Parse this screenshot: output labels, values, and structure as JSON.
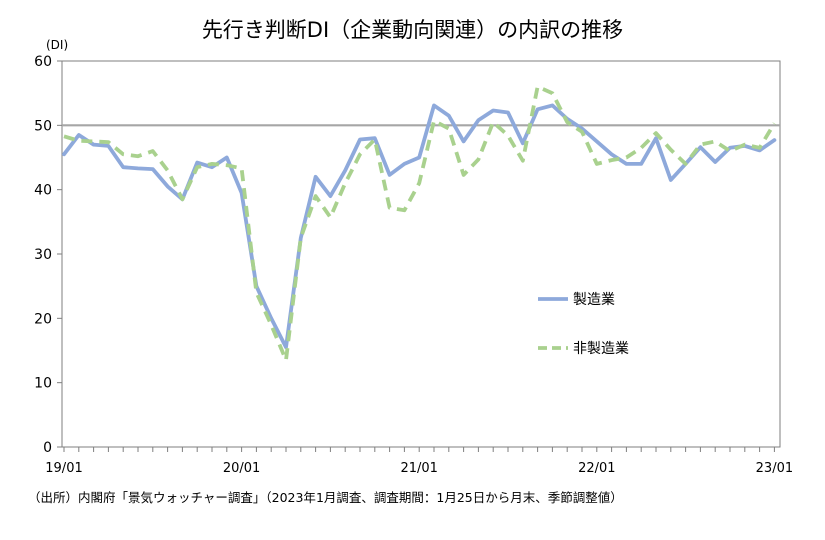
{
  "chart_data": {
    "type": "line",
    "title": "先行き判断DI（企業動向関連）の内訳の推移",
    "ylabel": "(DI)",
    "ylim": [
      0,
      60
    ],
    "yticks": [
      0,
      10,
      20,
      30,
      40,
      50,
      60
    ],
    "xtick_labels": [
      "19/01",
      "20/01",
      "21/01",
      "22/01",
      "23/01"
    ],
    "reference_line": 50,
    "grid": false,
    "legend_position": "center-right",
    "x": [
      "19/01",
      "19/02",
      "19/03",
      "19/04",
      "19/05",
      "19/06",
      "19/07",
      "19/08",
      "19/09",
      "19/10",
      "19/11",
      "19/12",
      "20/01",
      "20/02",
      "20/03",
      "20/04",
      "20/05",
      "20/06",
      "20/07",
      "20/08",
      "20/09",
      "20/10",
      "20/11",
      "20/12",
      "21/01",
      "21/02",
      "21/03",
      "21/04",
      "21/05",
      "21/06",
      "21/07",
      "21/08",
      "21/09",
      "21/10",
      "21/11",
      "21/12",
      "22/01",
      "22/02",
      "22/03",
      "22/04",
      "22/05",
      "22/06",
      "22/07",
      "22/08",
      "22/09",
      "22/10",
      "22/11",
      "22/12",
      "23/01"
    ],
    "series": [
      {
        "name": "製造業",
        "color": "#8EA9DB",
        "style": "solid",
        "values": [
          45.5,
          48.5,
          47,
          46.8,
          43.5,
          43.3,
          43.2,
          40.5,
          38.5,
          44.2,
          43.5,
          45,
          39.5,
          25,
          20,
          15.5,
          32.5,
          42,
          39,
          43,
          47.8,
          48,
          42.3,
          44,
          45,
          53.1,
          51.5,
          47.5,
          50.8,
          52.3,
          52,
          47.2,
          52.5,
          53.1,
          51,
          49.5,
          47.5,
          45.5,
          44,
          44,
          48,
          41.5,
          44,
          46.6,
          44.3,
          46.5,
          46.8,
          46.1,
          47.7
        ]
      },
      {
        "name": "非製造業",
        "color": "#A9D18E",
        "style": "dashed",
        "values": [
          48.3,
          47.6,
          47.5,
          47.4,
          45.5,
          45.2,
          46,
          43,
          38.5,
          43.5,
          44,
          43.8,
          43.3,
          24,
          19,
          13.5,
          32.5,
          39,
          35.7,
          41,
          45.5,
          47.8,
          37.2,
          36.8,
          41,
          50.7,
          49.5,
          42.3,
          44.7,
          50.5,
          48.4,
          44.5,
          56,
          55,
          50.5,
          49,
          44,
          44.6,
          45,
          46.5,
          48.8,
          46.2,
          44,
          47,
          47.5,
          46,
          47,
          46.5,
          50.3
        ]
      }
    ]
  },
  "source_note": "（出所）内閣府「景気ウォッチャー調査」（2023年1月調査、調査期間：1月25日から月末、季節調整値）"
}
